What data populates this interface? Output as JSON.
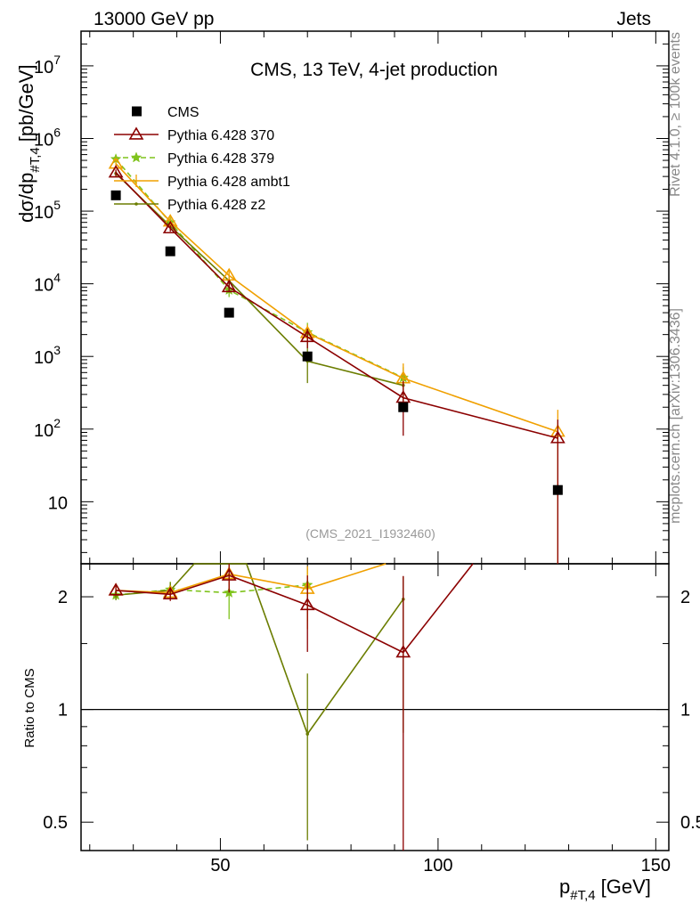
{
  "header": {
    "left": "13000 GeV pp",
    "right": "Jets"
  },
  "side_labels": {
    "rivet": "Rivet 4.1.0, ≥ 100k events",
    "mcplots": "mcplots.cern.ch [arXiv:1306.3436]"
  },
  "colors": {
    "cms": "#000000",
    "p370": "#8b0000",
    "p379": "#7fc31c",
    "ambt1": "#f0a000",
    "z2": "#6b7d00"
  },
  "chart_data": [
    {
      "type": "line",
      "title": "CMS, 13 TeV, 4-jet production",
      "analysis": "(CMS_2021_I1932460)",
      "ylabel_main": "dσ/dp",
      "ylabel_sub": "#T,4",
      "ylabel_unit": "[pb/GeV]",
      "yscale": "log",
      "xlim": [
        18,
        153
      ],
      "ylim": [
        1.4,
        30000000
      ],
      "x_ticks": [
        50,
        100,
        150
      ],
      "y_ticks": [
        {
          "v": 10,
          "label": "10",
          "exp": ""
        },
        {
          "v": 100,
          "label": "10",
          "exp": "2"
        },
        {
          "v": 1000,
          "label": "10",
          "exp": "3"
        },
        {
          "v": 10000,
          "label": "10",
          "exp": "4"
        },
        {
          "v": 100000,
          "label": "10",
          "exp": "5"
        },
        {
          "v": 1000000,
          "label": "10",
          "exp": "6"
        },
        {
          "v": 10000000,
          "label": "10",
          "exp": "7"
        }
      ],
      "series": [
        {
          "name": "CMS",
          "key": "cms",
          "style": "marker",
          "x": [
            26,
            38.5,
            52,
            70,
            92,
            127.5
          ],
          "y": [
            165000,
            28000,
            4000,
            1000,
            200,
            14.5
          ]
        },
        {
          "name": "Pythia 6.428 370",
          "key": "p370",
          "style": "line-triangle",
          "x": [
            26,
            38.5,
            52,
            70,
            92,
            127.5
          ],
          "y": [
            340000,
            58000,
            9000,
            1850,
            270,
            75
          ]
        },
        {
          "name": "Pythia 6.428 379",
          "key": "p379",
          "style": "dashed-star",
          "x": [
            26,
            38.5,
            52,
            70,
            92
          ],
          "y": [
            520000,
            70000,
            8200,
            2150,
            510
          ]
        },
        {
          "name": "Pythia 6.428 ambt1",
          "key": "ambt1",
          "style": "line-triangle",
          "x": [
            26,
            38.5,
            52,
            70,
            92,
            127.5
          ],
          "y": [
            450000,
            72000,
            13000,
            2100,
            500,
            92
          ]
        },
        {
          "name": "Pythia 6.428 z2",
          "key": "z2",
          "style": "line-dot",
          "x": [
            26,
            38.5,
            52,
            70,
            92
          ],
          "y": [
            330000,
            62000,
            11000,
            860,
            400
          ]
        }
      ]
    },
    {
      "type": "line",
      "ylabel": "Ratio to CMS",
      "xlabel": "p",
      "xlabel_sub": "#T,4",
      "xlabel_unit": "[GeV]",
      "yscale": "log",
      "xlim": [
        18,
        153
      ],
      "ylim": [
        0.42,
        2.45
      ],
      "y_ticks": [
        {
          "v": 0.5,
          "label": "0.5"
        },
        {
          "v": 1,
          "label": "1"
        },
        {
          "v": 2,
          "label": "2"
        }
      ],
      "reference": 1,
      "series": [
        {
          "name": "Pythia 6.428 370",
          "key": "p370",
          "x": [
            26,
            38.5,
            52,
            70,
            92,
            108
          ],
          "y": [
            2.08,
            2.03,
            2.28,
            1.9,
            1.42,
            2.45
          ]
        },
        {
          "name": "Pythia 6.428 379",
          "key": "p379",
          "x": [
            26,
            38.5,
            52,
            70
          ],
          "y": [
            2.02,
            2.09,
            2.05,
            2.15
          ]
        },
        {
          "name": "Pythia 6.428 ambt1",
          "key": "ambt1",
          "x": [
            26,
            38.5,
            52,
            70,
            88
          ],
          "y": [
            2.08,
            2.05,
            2.3,
            2.1,
            2.45
          ]
        },
        {
          "name": "Pythia 6.428 z2",
          "key": "z2",
          "x": [
            26,
            38.5,
            44,
            56,
            70,
            92
          ],
          "y": [
            2.02,
            2.08,
            2.45,
            2.45,
            0.86,
            1.97
          ]
        }
      ]
    }
  ]
}
